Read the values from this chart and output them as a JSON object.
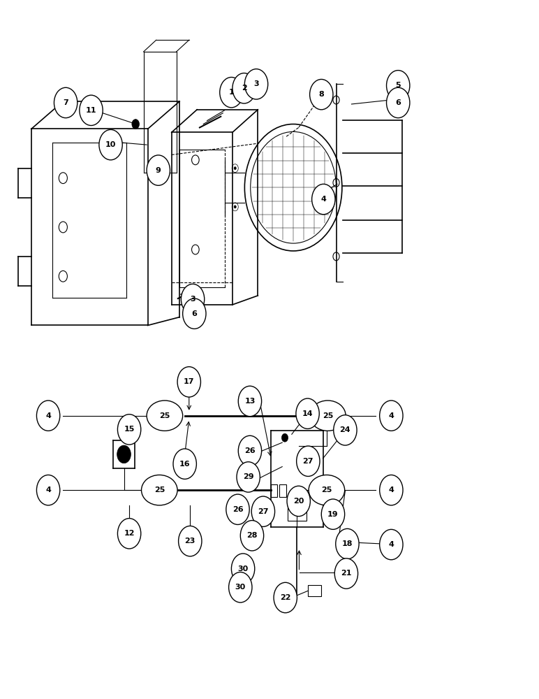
{
  "bg_color": "#ffffff",
  "line_color": "#000000",
  "fig_width": 7.72,
  "fig_height": 10.0
}
